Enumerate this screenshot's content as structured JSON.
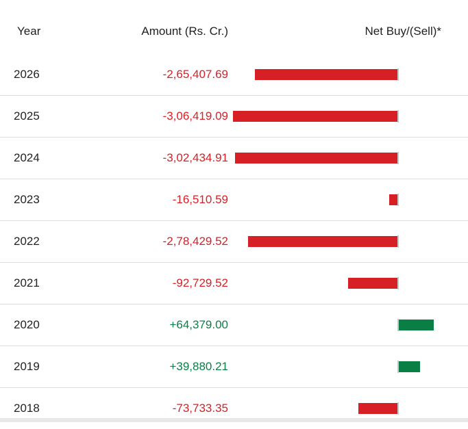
{
  "header": {
    "year": "Year",
    "amount": "Amount (Rs. Cr.)",
    "net": "Net Buy/(Sell)*"
  },
  "colors": {
    "negative": "#d71f26",
    "positive": "#0a7f45"
  },
  "chart_data": {
    "type": "bar",
    "orientation": "horizontal",
    "categories": [
      "2026",
      "2025",
      "2024",
      "2023",
      "2022",
      "2021",
      "2020",
      "2019",
      "2018"
    ],
    "values": [
      -265407.69,
      -306419.09,
      -302434.91,
      -16510.59,
      -278429.52,
      -92729.52,
      64379.0,
      39880.21,
      -73733.35
    ],
    "value_labels": [
      "-2,65,407.69",
      "-3,06,419.09",
      "-3,02,434.91",
      "-16,510.59",
      "-2,78,429.52",
      "-92,729.52",
      "+64,379.00",
      "+39,880.21",
      "-73,733.35"
    ]
  }
}
